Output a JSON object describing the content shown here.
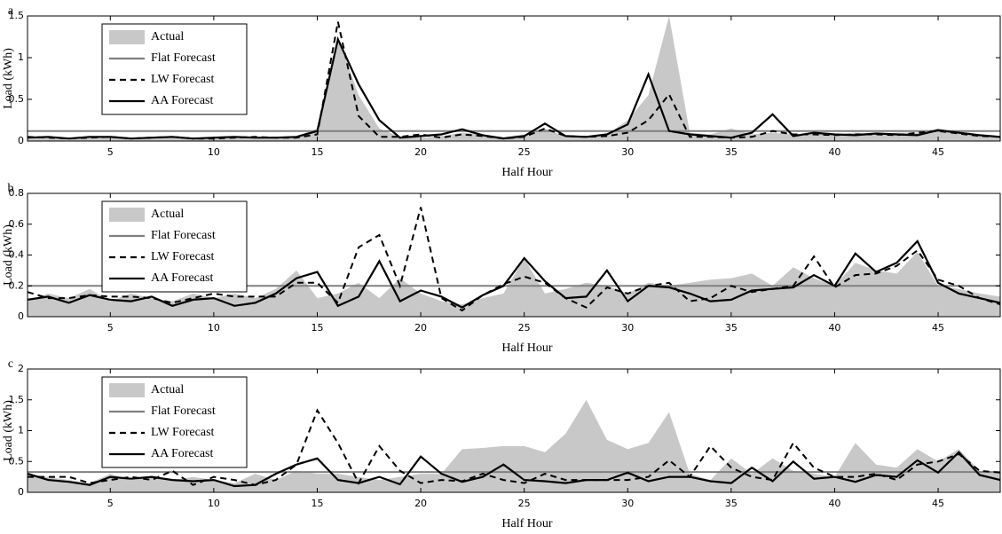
{
  "chart_data": [
    {
      "type": "line",
      "panel_label": "a",
      "xlabel": "Half Hour",
      "ylabel": "Load (kWh)",
      "x": [
        1,
        2,
        3,
        4,
        5,
        6,
        7,
        8,
        9,
        10,
        11,
        12,
        13,
        14,
        15,
        16,
        17,
        18,
        19,
        20,
        21,
        22,
        23,
        24,
        25,
        26,
        27,
        28,
        29,
        30,
        31,
        32,
        33,
        34,
        35,
        36,
        37,
        38,
        39,
        40,
        41,
        42,
        43,
        44,
        45,
        46,
        47,
        48
      ],
      "xlim": [
        1,
        48
      ],
      "xticks": [
        5,
        10,
        15,
        20,
        25,
        30,
        35,
        40,
        45
      ],
      "ylim": [
        0,
        1.5
      ],
      "yticks": [
        0,
        0.5,
        1,
        1.5
      ],
      "legend": "upper left",
      "series": [
        {
          "name": "Actual",
          "color": "#c8c8c8",
          "style": "area",
          "values": [
            0.03,
            0.04,
            0.03,
            0.05,
            0.04,
            0.03,
            0.04,
            0.05,
            0.03,
            0.04,
            0.05,
            0.04,
            0.05,
            0.06,
            0.15,
            1.25,
            0.55,
            0.15,
            0.05,
            0.04,
            0.06,
            0.1,
            0.08,
            0.05,
            0.08,
            0.15,
            0.05,
            0.06,
            0.08,
            0.25,
            0.55,
            1.5,
            0.1,
            0.08,
            0.15,
            0.08,
            0.1,
            0.08,
            0.1,
            0.08,
            0.1,
            0.09,
            0.1,
            0.1,
            0.15,
            0.1,
            0.08,
            0.06
          ]
        },
        {
          "name": "Flat Forecast",
          "color": "#808080",
          "style": "solid",
          "values": [
            0.12,
            0.12,
            0.12,
            0.12,
            0.12,
            0.12,
            0.12,
            0.12,
            0.12,
            0.12,
            0.12,
            0.12,
            0.12,
            0.12,
            0.12,
            0.12,
            0.12,
            0.12,
            0.12,
            0.12,
            0.12,
            0.12,
            0.12,
            0.12,
            0.12,
            0.12,
            0.12,
            0.12,
            0.12,
            0.12,
            0.12,
            0.12,
            0.12,
            0.12,
            0.12,
            0.12,
            0.12,
            0.12,
            0.12,
            0.12,
            0.12,
            0.12,
            0.12,
            0.12,
            0.12,
            0.12,
            0.12,
            0.12
          ]
        },
        {
          "name": "LW Forecast",
          "color": "#000000",
          "style": "dashed",
          "values": [
            0.05,
            0.04,
            0.03,
            0.04,
            0.05,
            0.03,
            0.04,
            0.05,
            0.03,
            0.03,
            0.04,
            0.05,
            0.04,
            0.04,
            0.08,
            1.43,
            0.3,
            0.05,
            0.05,
            0.08,
            0.04,
            0.08,
            0.06,
            0.03,
            0.05,
            0.15,
            0.06,
            0.05,
            0.06,
            0.1,
            0.25,
            0.56,
            0.05,
            0.05,
            0.04,
            0.05,
            0.12,
            0.08,
            0.08,
            0.07,
            0.08,
            0.08,
            0.07,
            0.1,
            0.12,
            0.09,
            0.06,
            0.05
          ]
        },
        {
          "name": "AA Forecast",
          "color": "#000000",
          "style": "solid",
          "values": [
            0.04,
            0.05,
            0.03,
            0.05,
            0.05,
            0.03,
            0.04,
            0.05,
            0.03,
            0.04,
            0.05,
            0.04,
            0.04,
            0.05,
            0.12,
            1.22,
            0.68,
            0.25,
            0.04,
            0.06,
            0.08,
            0.14,
            0.07,
            0.03,
            0.06,
            0.21,
            0.06,
            0.05,
            0.08,
            0.2,
            0.8,
            0.12,
            0.08,
            0.06,
            0.04,
            0.1,
            0.32,
            0.06,
            0.1,
            0.08,
            0.07,
            0.09,
            0.08,
            0.07,
            0.13,
            0.1,
            0.07,
            0.05
          ]
        }
      ]
    },
    {
      "type": "line",
      "panel_label": "b",
      "xlabel": "Half Hour",
      "ylabel": "Load (kWh)",
      "x": [
        1,
        2,
        3,
        4,
        5,
        6,
        7,
        8,
        9,
        10,
        11,
        12,
        13,
        14,
        15,
        16,
        17,
        18,
        19,
        20,
        21,
        22,
        23,
        24,
        25,
        26,
        27,
        28,
        29,
        30,
        31,
        32,
        33,
        34,
        35,
        36,
        37,
        38,
        39,
        40,
        41,
        42,
        43,
        44,
        45,
        46,
        47,
        48
      ],
      "xlim": [
        1,
        48
      ],
      "xticks": [
        5,
        10,
        15,
        20,
        25,
        30,
        35,
        40,
        45
      ],
      "ylim": [
        0,
        0.8
      ],
      "yticks": [
        0,
        0.2,
        0.4,
        0.6,
        0.8
      ],
      "legend": "upper left",
      "series": [
        {
          "name": "Actual",
          "color": "#c8c8c8",
          "style": "area",
          "values": [
            0.1,
            0.15,
            0.12,
            0.18,
            0.1,
            0.15,
            0.12,
            0.1,
            0.15,
            0.12,
            0.15,
            0.12,
            0.18,
            0.3,
            0.12,
            0.15,
            0.22,
            0.12,
            0.25,
            0.15,
            0.1,
            0.08,
            0.12,
            0.15,
            0.38,
            0.15,
            0.18,
            0.22,
            0.2,
            0.15,
            0.22,
            0.2,
            0.22,
            0.24,
            0.25,
            0.28,
            0.2,
            0.32,
            0.25,
            0.2,
            0.35,
            0.3,
            0.28,
            0.42,
            0.2,
            0.18,
            0.15,
            0.13
          ]
        },
        {
          "name": "Flat Forecast",
          "color": "#808080",
          "style": "solid",
          "values": [
            0.2,
            0.2,
            0.2,
            0.2,
            0.2,
            0.2,
            0.2,
            0.2,
            0.2,
            0.2,
            0.2,
            0.2,
            0.2,
            0.2,
            0.2,
            0.2,
            0.2,
            0.2,
            0.2,
            0.2,
            0.2,
            0.2,
            0.2,
            0.2,
            0.2,
            0.2,
            0.2,
            0.2,
            0.2,
            0.2,
            0.2,
            0.2,
            0.2,
            0.2,
            0.2,
            0.2,
            0.2,
            0.2,
            0.2,
            0.2,
            0.2,
            0.2,
            0.2,
            0.2,
            0.2,
            0.2,
            0.2,
            0.2
          ]
        },
        {
          "name": "LW Forecast",
          "color": "#000000",
          "style": "dashed",
          "values": [
            0.16,
            0.12,
            0.12,
            0.14,
            0.13,
            0.13,
            0.12,
            0.09,
            0.12,
            0.15,
            0.13,
            0.13,
            0.13,
            0.22,
            0.22,
            0.09,
            0.45,
            0.53,
            0.2,
            0.71,
            0.12,
            0.04,
            0.14,
            0.21,
            0.26,
            0.22,
            0.12,
            0.06,
            0.19,
            0.15,
            0.2,
            0.22,
            0.1,
            0.12,
            0.2,
            0.16,
            0.18,
            0.2,
            0.39,
            0.19,
            0.27,
            0.28,
            0.33,
            0.43,
            0.24,
            0.2,
            0.12,
            0.08
          ]
        },
        {
          "name": "AA Forecast",
          "color": "#000000",
          "style": "solid",
          "values": [
            0.11,
            0.13,
            0.09,
            0.14,
            0.11,
            0.1,
            0.13,
            0.07,
            0.11,
            0.12,
            0.07,
            0.09,
            0.15,
            0.25,
            0.29,
            0.07,
            0.13,
            0.36,
            0.1,
            0.17,
            0.13,
            0.06,
            0.14,
            0.2,
            0.38,
            0.23,
            0.12,
            0.13,
            0.3,
            0.1,
            0.2,
            0.19,
            0.15,
            0.1,
            0.11,
            0.17,
            0.18,
            0.19,
            0.27,
            0.2,
            0.41,
            0.29,
            0.35,
            0.49,
            0.22,
            0.15,
            0.12,
            0.09
          ]
        }
      ]
    },
    {
      "type": "line",
      "panel_label": "c",
      "xlabel": "Half Hour",
      "ylabel": "Load (kWh)",
      "x": [
        1,
        2,
        3,
        4,
        5,
        6,
        7,
        8,
        9,
        10,
        11,
        12,
        13,
        14,
        15,
        16,
        17,
        18,
        19,
        20,
        21,
        22,
        23,
        24,
        25,
        26,
        27,
        28,
        29,
        30,
        31,
        32,
        33,
        34,
        35,
        36,
        37,
        38,
        39,
        40,
        41,
        42,
        43,
        44,
        45,
        46,
        47,
        48
      ],
      "xlim": [
        1,
        48
      ],
      "xticks": [
        5,
        10,
        15,
        20,
        25,
        30,
        35,
        40,
        45
      ],
      "ylim": [
        0,
        2
      ],
      "yticks": [
        0,
        0.5,
        1,
        1.5,
        2
      ],
      "legend": "upper left",
      "series": [
        {
          "name": "Actual",
          "color": "#c8c8c8",
          "style": "area",
          "values": [
            0.3,
            0.25,
            0.2,
            0.15,
            0.3,
            0.2,
            0.25,
            0.2,
            0.25,
            0.2,
            0.15,
            0.3,
            0.2,
            0.35,
            0.3,
            0.3,
            0.25,
            0.2,
            0.25,
            0.3,
            0.3,
            0.7,
            0.72,
            0.75,
            0.75,
            0.65,
            0.95,
            1.5,
            0.85,
            0.7,
            0.8,
            1.3,
            0.3,
            0.2,
            0.55,
            0.3,
            0.55,
            0.35,
            0.3,
            0.25,
            0.8,
            0.45,
            0.4,
            0.7,
            0.5,
            0.7,
            0.35,
            0.3
          ]
        },
        {
          "name": "Flat Forecast",
          "color": "#808080",
          "style": "solid",
          "values": [
            0.33,
            0.33,
            0.33,
            0.33,
            0.33,
            0.33,
            0.33,
            0.33,
            0.33,
            0.33,
            0.33,
            0.33,
            0.33,
            0.33,
            0.33,
            0.33,
            0.33,
            0.33,
            0.33,
            0.33,
            0.33,
            0.33,
            0.33,
            0.33,
            0.33,
            0.33,
            0.33,
            0.33,
            0.33,
            0.33,
            0.33,
            0.33,
            0.33,
            0.33,
            0.33,
            0.33,
            0.33,
            0.33,
            0.33,
            0.33,
            0.33,
            0.33,
            0.33,
            0.33,
            0.33,
            0.33,
            0.33,
            0.33
          ]
        },
        {
          "name": "LW Forecast",
          "color": "#000000",
          "style": "dashed",
          "values": [
            0.25,
            0.25,
            0.25,
            0.15,
            0.2,
            0.25,
            0.2,
            0.35,
            0.12,
            0.25,
            0.2,
            0.12,
            0.2,
            0.45,
            1.33,
            0.8,
            0.15,
            0.75,
            0.35,
            0.15,
            0.2,
            0.18,
            0.3,
            0.2,
            0.15,
            0.3,
            0.2,
            0.2,
            0.2,
            0.2,
            0.25,
            0.52,
            0.25,
            0.75,
            0.4,
            0.25,
            0.2,
            0.8,
            0.4,
            0.25,
            0.25,
            0.3,
            0.2,
            0.45,
            0.5,
            0.62,
            0.35,
            0.32
          ]
        },
        {
          "name": "AA Forecast",
          "color": "#000000",
          "style": "solid",
          "values": [
            0.3,
            0.2,
            0.17,
            0.12,
            0.25,
            0.22,
            0.25,
            0.2,
            0.18,
            0.2,
            0.1,
            0.12,
            0.3,
            0.45,
            0.55,
            0.2,
            0.15,
            0.25,
            0.13,
            0.58,
            0.3,
            0.17,
            0.25,
            0.45,
            0.2,
            0.18,
            0.15,
            0.2,
            0.2,
            0.32,
            0.18,
            0.25,
            0.25,
            0.18,
            0.15,
            0.4,
            0.18,
            0.5,
            0.22,
            0.25,
            0.17,
            0.28,
            0.25,
            0.52,
            0.32,
            0.65,
            0.28,
            0.2
          ]
        }
      ]
    }
  ]
}
